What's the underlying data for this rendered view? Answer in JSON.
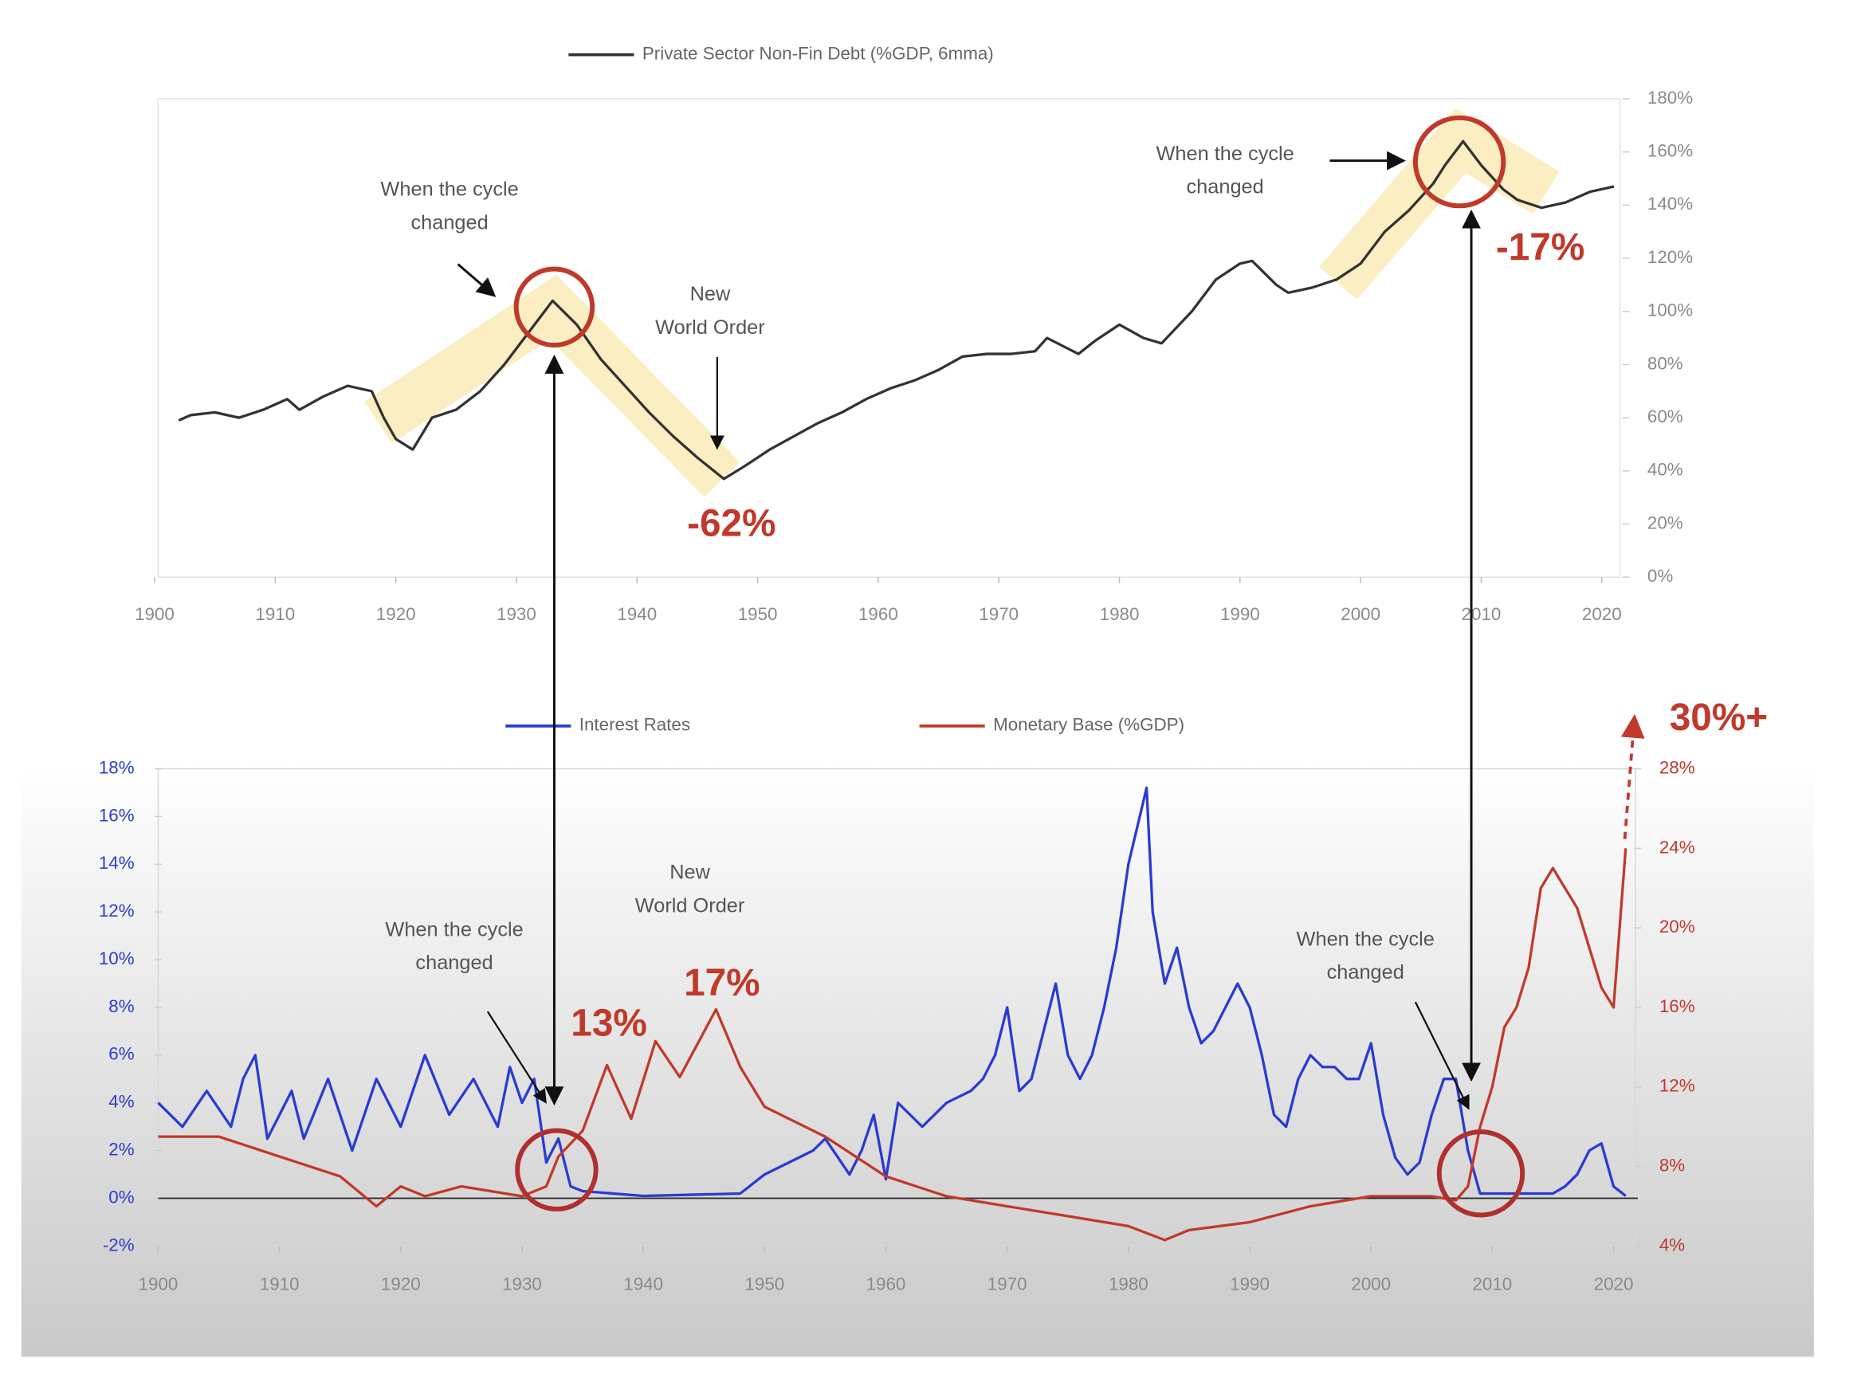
{
  "chart_data": [
    {
      "type": "line",
      "series": [
        {
          "name": "Private Sector Non-Fin Debt (%GDP, 6mma)",
          "color": "#333333",
          "x": [
            1902,
            1903,
            1905,
            1907,
            1909,
            1911,
            1912,
            1914,
            1916,
            1918,
            1919,
            1920,
            1921.4,
            1923,
            1925,
            1927,
            1929,
            1931,
            1933,
            1935,
            1937,
            1939,
            1941,
            1943,
            1945,
            1947.2,
            1949,
            1951,
            1953,
            1955,
            1957,
            1959,
            1961,
            1963,
            1965,
            1967,
            1969,
            1971,
            1973,
            1974,
            1976.6,
            1978,
            1980,
            1982,
            1983.5,
            1986,
            1988,
            1990,
            1991,
            1993,
            1994,
            1996,
            1998,
            2000,
            2002,
            2004,
            2006,
            2007,
            2008.5,
            2010,
            2011.8,
            2013,
            2015,
            2017,
            2019,
            2021
          ],
          "values": [
            59,
            61,
            62,
            60,
            63,
            67,
            63,
            68,
            72,
            70,
            60,
            52,
            48,
            60,
            63,
            70,
            80,
            92,
            104,
            95,
            82,
            72,
            62,
            53,
            45,
            37,
            42,
            48,
            53,
            58,
            62,
            67,
            71,
            74,
            78,
            83,
            84,
            84,
            85,
            90,
            84,
            89,
            95,
            90,
            88,
            100,
            112,
            118,
            119,
            110,
            107,
            109,
            112,
            118,
            130,
            138,
            148,
            155,
            164,
            155,
            146,
            142,
            139,
            141,
            145,
            147
          ]
        }
      ],
      "xlim": [
        1900,
        2022
      ],
      "xticks": [
        1900,
        1910,
        1920,
        1930,
        1940,
        1950,
        1960,
        1970,
        1980,
        1990,
        2000,
        2010,
        2020
      ],
      "ylim": [
        0,
        180
      ],
      "yticks": [
        {
          "value": 0,
          "label": "0%"
        },
        {
          "value": 20,
          "label": "20%"
        },
        {
          "value": 40,
          "label": "40%"
        },
        {
          "value": 60,
          "label": "60%"
        },
        {
          "value": 80,
          "label": "80%"
        },
        {
          "value": 100,
          "label": "100%"
        },
        {
          "value": 120,
          "label": "120%"
        },
        {
          "value": 140,
          "label": "140%"
        },
        {
          "value": 160,
          "label": "160%"
        },
        {
          "value": 180,
          "label": "180%"
        }
      ],
      "y_axis_side": "right",
      "legend": "top",
      "annotations": [
        {
          "text": [
            "When the cycle",
            "changed"
          ]
        },
        {
          "text": [
            "New",
            "World Order"
          ]
        },
        {
          "text": "-62%"
        },
        {
          "text": [
            "When the cycle",
            "changed"
          ]
        },
        {
          "text": "-17%"
        }
      ]
    },
    {
      "type": "line",
      "series": [
        {
          "name": "Interest Rates",
          "color": "#2a3bd0",
          "x": [
            1900,
            1902,
            1904,
            1906,
            1907,
            1908,
            1909,
            1911,
            1912,
            1914,
            1916,
            1918,
            1920,
            1922,
            1924,
            1926,
            1928,
            1929,
            1930,
            1931,
            1932,
            1933,
            1934,
            1935,
            1940,
            1948,
            1950,
            1954,
            1955,
            1957,
            1958,
            1959,
            1960,
            1961,
            1963,
            1965,
            1967,
            1968,
            1969,
            1970,
            1971,
            1972,
            1974,
            1975,
            1976,
            1977,
            1978,
            1979,
            1980,
            1981.5,
            1982,
            1983,
            1984,
            1985,
            1986,
            1987,
            1988,
            1989,
            1990,
            1991,
            1992,
            1993,
            1994,
            1995,
            1996,
            1997,
            1998,
            1999,
            2000,
            2001,
            2002,
            2003,
            2004,
            2005,
            2006,
            2007,
            2008,
            2009,
            2015,
            2016,
            2017,
            2018,
            2019,
            2020,
            2021
          ],
          "values": [
            4,
            3,
            4.5,
            3,
            5,
            6,
            2.5,
            4.5,
            2.5,
            5,
            2,
            5,
            3,
            6,
            3.5,
            5,
            3,
            5.5,
            4,
            5,
            1.5,
            2.5,
            0.5,
            0.3,
            0.1,
            0.2,
            1,
            2,
            2.5,
            1,
            2,
            3.5,
            0.8,
            4,
            3,
            4,
            4.5,
            5,
            6,
            8,
            4.5,
            5,
            9,
            6,
            5,
            6,
            8,
            10.5,
            14,
            17.2,
            12,
            9,
            10.5,
            8,
            6.5,
            7,
            8,
            9,
            8,
            6,
            3.5,
            3,
            5,
            6,
            5.5,
            5.5,
            5,
            5,
            6.5,
            3.5,
            1.7,
            1,
            1.5,
            3.5,
            5,
            5,
            2,
            0.2,
            0.2,
            0.5,
            1,
            2,
            2.3,
            0.5,
            0.1
          ]
        },
        {
          "name": "Monetary Base (%GDP)",
          "color": "#c0392b",
          "axis": "y2",
          "x": [
            1900,
            1905,
            1910,
            1915,
            1918,
            1920,
            1922,
            1925,
            1930,
            1932,
            1933,
            1935,
            1937,
            1939,
            1941,
            1943,
            1946,
            1948,
            1950,
            1955,
            1960,
            1965,
            1970,
            1975,
            1980,
            1983,
            1985,
            1990,
            1995,
            2000,
            2005,
            2007,
            2008,
            2009,
            2010,
            2011,
            2012,
            2013,
            2014,
            2015,
            2016,
            2017,
            2018,
            2019,
            2020,
            2021
          ],
          "values": [
            9.5,
            9.5,
            8.5,
            7.5,
            6,
            7,
            6.5,
            7,
            6.5,
            7,
            8.5,
            9.8,
            13.1,
            10.4,
            14.3,
            12.5,
            15.9,
            13,
            11,
            9.5,
            7.5,
            6.5,
            6,
            5.5,
            5,
            4.3,
            4.8,
            5.2,
            6,
            6.5,
            6.5,
            6.3,
            7,
            10,
            12,
            15,
            16,
            18,
            22,
            23,
            22,
            21,
            19,
            17,
            16,
            24
          ]
        }
      ],
      "xlim": [
        1900,
        2022
      ],
      "xticks": [
        1900,
        1910,
        1920,
        1930,
        1940,
        1950,
        1960,
        1970,
        1980,
        1990,
        2000,
        2010,
        2020
      ],
      "ylim": [
        -2,
        18
      ],
      "yticks": [
        {
          "value": -2,
          "label": "-2%"
        },
        {
          "value": 0,
          "label": "0%"
        },
        {
          "value": 2,
          "label": "2%"
        },
        {
          "value": 4,
          "label": "4%"
        },
        {
          "value": 6,
          "label": "6%"
        },
        {
          "value": 8,
          "label": "8%"
        },
        {
          "value": 10,
          "label": "10%"
        },
        {
          "value": 12,
          "label": "12%"
        },
        {
          "value": 14,
          "label": "14%"
        },
        {
          "value": 16,
          "label": "16%"
        },
        {
          "value": 18,
          "label": "18%"
        }
      ],
      "y2lim": [
        4,
        28
      ],
      "y2ticks": [
        {
          "value": 4,
          "label": "4%"
        },
        {
          "value": 8,
          "label": "8%"
        },
        {
          "value": 12,
          "label": "12%"
        },
        {
          "value": 16,
          "label": "16%"
        },
        {
          "value": 20,
          "label": "20%"
        },
        {
          "value": 24,
          "label": "24%"
        },
        {
          "value": 28,
          "label": "28%"
        }
      ],
      "legend": "top",
      "annotations": [
        {
          "text": [
            "New",
            "World Order"
          ]
        },
        {
          "text": [
            "When the cycle",
            "changed"
          ]
        },
        {
          "text": "13%"
        },
        {
          "text": "17%"
        },
        {
          "text": [
            "When the cycle",
            "changed"
          ]
        },
        {
          "text": "30%+"
        }
      ]
    }
  ]
}
